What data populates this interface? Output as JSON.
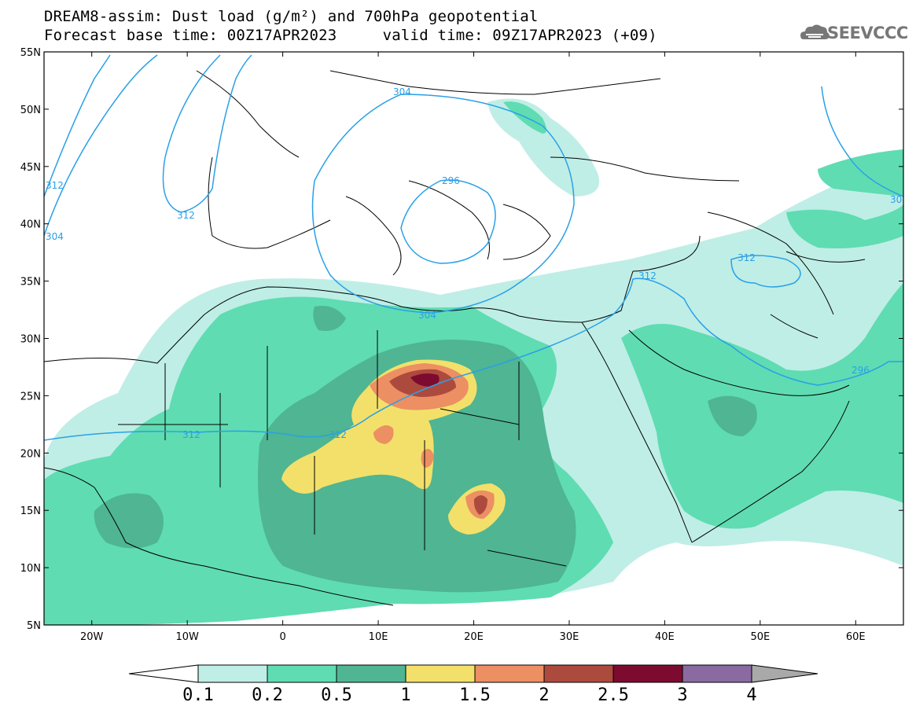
{
  "title": {
    "line1": "DREAM8-assim: Dust load (g/m²) and 700hPa geopotential",
    "line2": "Forecast base time: 00Z17APR2023     valid time: 09Z17APR2023 (+09)"
  },
  "logo": {
    "text": "SEEVCCC",
    "icon": "cloud-logo-icon"
  },
  "map": {
    "lat_range": [
      5,
      55
    ],
    "lon_range": [
      -25,
      65
    ],
    "lat_ticks": [
      "55N",
      "50N",
      "45N",
      "40N",
      "35N",
      "30N",
      "25N",
      "20N",
      "15N",
      "10N",
      "5N"
    ],
    "lon_ticks": [
      "20W",
      "10W",
      "0",
      "10E",
      "20E",
      "30E",
      "40E",
      "50E",
      "60E"
    ],
    "contour_color": "#2aa0e6",
    "contour_labels": [
      "304",
      "296",
      "312",
      "304",
      "312",
      "312",
      "312",
      "312",
      "296",
      "304",
      "312",
      "30"
    ]
  },
  "colorbar": {
    "labels": [
      "0.1",
      "0.2",
      "0.5",
      "1",
      "1.5",
      "2",
      "2.5",
      "3",
      "4"
    ],
    "colors": [
      "#bfeee6",
      "#5fdcb2",
      "#4fb592",
      "#f2e06a",
      "#ec8f63",
      "#ad4a3e",
      "#7d0b2f",
      "#8a6aa0",
      "#a9a9a9"
    ]
  }
}
